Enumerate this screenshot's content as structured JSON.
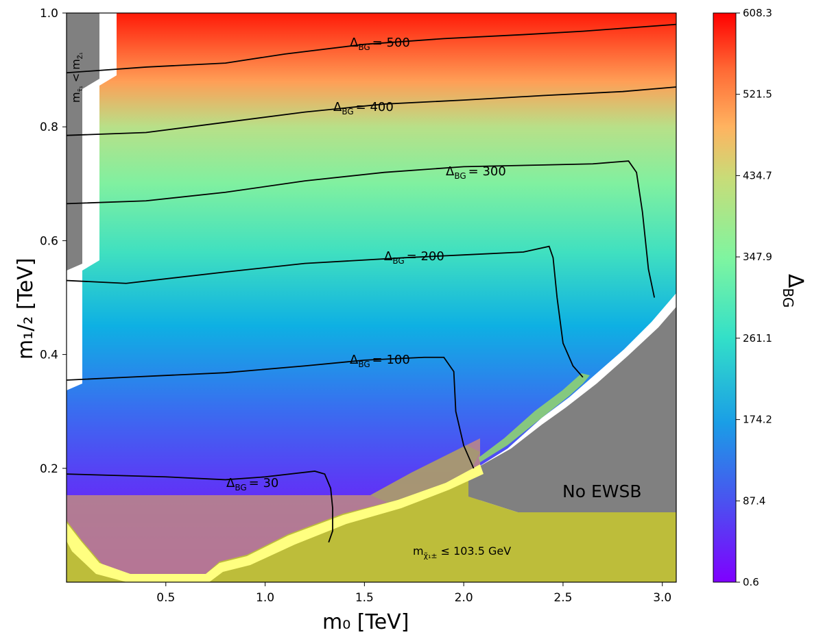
{
  "chart_data": {
    "type": "heatmap",
    "xlabel": "m₀ [TeV]",
    "ylabel": "m₁/₂ [TeV]",
    "xlim": [
      0.0,
      3.07
    ],
    "ylim": [
      0.0,
      1.0
    ],
    "xticks": [
      0.5,
      1.0,
      1.5,
      2.0,
      2.5,
      3.0
    ],
    "xtick_labels": [
      "0.5",
      "1.0",
      "1.5",
      "2.0",
      "2.5",
      "3.0"
    ],
    "yticks": [
      0.2,
      0.4,
      0.6,
      0.8,
      1.0
    ],
    "ytick_labels": [
      "0.2",
      "0.4",
      "0.6",
      "0.8",
      "1.0"
    ],
    "colorbar": {
      "label": "Δ",
      "label_sub": "BG",
      "range": [
        0.6,
        608.3
      ],
      "ticks": [
        0.6,
        87.4,
        174.2,
        261.1,
        347.9,
        434.7,
        521.5,
        608.3
      ],
      "tick_labels": [
        "0.6",
        "87.4",
        "174.2",
        "261.1",
        "347.9",
        "434.7",
        "521.5",
        "608.3"
      ],
      "colormap": "rainbow"
    },
    "contours": [
      {
        "level": 30,
        "label_prefix": "Δ",
        "label_sub": "BG",
        "label_value": "= 30",
        "points": [
          [
            0.0,
            0.19
          ],
          [
            0.5,
            0.185
          ],
          [
            0.8,
            0.18
          ],
          [
            1.0,
            0.185
          ],
          [
            1.25,
            0.195
          ],
          [
            1.3,
            0.19
          ],
          [
            1.33,
            0.165
          ],
          [
            1.34,
            0.13
          ],
          [
            1.34,
            0.09
          ],
          [
            1.32,
            0.07
          ]
        ]
      },
      {
        "level": 100,
        "label_prefix": "Δ",
        "label_sub": "BG",
        "label_value": "= 100",
        "points": [
          [
            0.0,
            0.355
          ],
          [
            0.3,
            0.36
          ],
          [
            0.8,
            0.368
          ],
          [
            1.2,
            0.38
          ],
          [
            1.5,
            0.39
          ],
          [
            1.8,
            0.395
          ],
          [
            1.9,
            0.395
          ],
          [
            1.95,
            0.37
          ],
          [
            1.96,
            0.3
          ],
          [
            2.0,
            0.24
          ],
          [
            2.05,
            0.2
          ]
        ]
      },
      {
        "level": 200,
        "label_prefix": "Δ",
        "label_sub": "BG",
        "label_value": "= 200",
        "points": [
          [
            0.0,
            0.53
          ],
          [
            0.3,
            0.525
          ],
          [
            0.8,
            0.545
          ],
          [
            1.2,
            0.56
          ],
          [
            1.7,
            0.57
          ],
          [
            2.0,
            0.575
          ],
          [
            2.3,
            0.58
          ],
          [
            2.43,
            0.59
          ],
          [
            2.45,
            0.57
          ],
          [
            2.47,
            0.5
          ],
          [
            2.5,
            0.42
          ],
          [
            2.55,
            0.38
          ],
          [
            2.6,
            0.36
          ]
        ]
      },
      {
        "level": 300,
        "label_prefix": "Δ",
        "label_sub": "BG",
        "label_value": "= 300",
        "points": [
          [
            0.0,
            0.665
          ],
          [
            0.4,
            0.67
          ],
          [
            0.8,
            0.685
          ],
          [
            1.2,
            0.705
          ],
          [
            1.6,
            0.72
          ],
          [
            2.0,
            0.73
          ],
          [
            2.4,
            0.733
          ],
          [
            2.65,
            0.735
          ],
          [
            2.83,
            0.74
          ],
          [
            2.87,
            0.72
          ],
          [
            2.9,
            0.65
          ],
          [
            2.93,
            0.55
          ],
          [
            2.96,
            0.5
          ]
        ]
      },
      {
        "level": 400,
        "label_prefix": "Δ",
        "label_sub": "BG",
        "label_value": "= 400",
        "points": [
          [
            0.0,
            0.785
          ],
          [
            0.4,
            0.79
          ],
          [
            0.8,
            0.808
          ],
          [
            1.2,
            0.826
          ],
          [
            1.6,
            0.84
          ],
          [
            2.0,
            0.847
          ],
          [
            2.4,
            0.855
          ],
          [
            2.8,
            0.862
          ],
          [
            3.07,
            0.87
          ]
        ]
      },
      {
        "level": 500,
        "label_prefix": "Δ",
        "label_sub": "BG",
        "label_value": "= 500",
        "points": [
          [
            0.0,
            0.895
          ],
          [
            0.4,
            0.905
          ],
          [
            0.8,
            0.912
          ],
          [
            1.1,
            0.928
          ],
          [
            1.5,
            0.945
          ],
          [
            1.9,
            0.955
          ],
          [
            2.3,
            0.962
          ],
          [
            2.6,
            0.968
          ],
          [
            3.07,
            0.98
          ]
        ]
      }
    ],
    "regions": [
      {
        "name": "No EWSB",
        "label": "No EWSB"
      },
      {
        "name": "chargino mass bound",
        "label_prefix": "m",
        "label_sub": "χ̃₁±",
        "label_value": "≤ 103.5 GeV"
      },
      {
        "name": "stau LSP",
        "label_prefix": "m",
        "label_sub1": "τ̃₁",
        "label_mid": " < m",
        "label_sub2": "Z̃₁"
      }
    ]
  },
  "colors": {
    "grey_region": "#808080",
    "olive_region": "#bdbd3a",
    "yellow_band": "#ffff80",
    "contour": "#000000"
  }
}
